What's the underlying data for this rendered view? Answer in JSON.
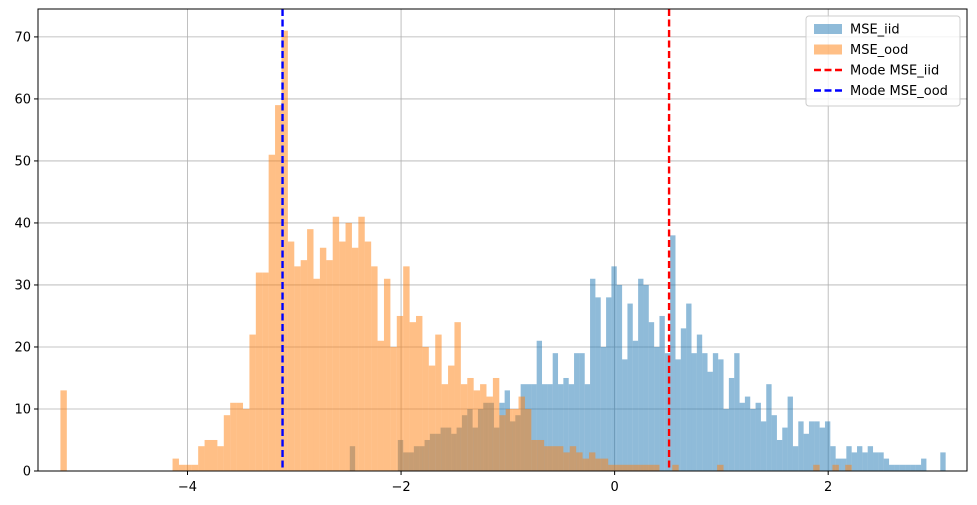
{
  "chart_data": {
    "type": "histogram",
    "title": "",
    "xlabel": "",
    "ylabel": "",
    "xlim": [
      -5.4,
      3.3
    ],
    "ylim": [
      0,
      74.5
    ],
    "xticks": [
      -4,
      -2,
      0,
      2
    ],
    "xtick_labels": [
      "−4",
      "−2",
      "0",
      "2"
    ],
    "yticks": [
      0,
      10,
      20,
      30,
      40,
      50,
      60,
      70
    ],
    "ytick_labels": [
      "0",
      "10",
      "20",
      "30",
      "40",
      "50",
      "60",
      "70"
    ],
    "grid": true,
    "legend_position": "top-right",
    "series": [
      {
        "name": "MSE_iid",
        "color": "#1f77b4",
        "alpha": 0.5,
        "bins": [
          [
            -2.48,
            -2.43,
            4
          ],
          [
            -2.03,
            -1.98,
            5
          ],
          [
            -1.98,
            -1.93,
            3
          ],
          [
            -1.93,
            -1.88,
            3
          ],
          [
            -1.88,
            -1.83,
            4
          ],
          [
            -1.83,
            -1.78,
            4
          ],
          [
            -1.78,
            -1.73,
            5
          ],
          [
            -1.73,
            -1.68,
            6
          ],
          [
            -1.68,
            -1.63,
            6
          ],
          [
            -1.63,
            -1.58,
            7
          ],
          [
            -1.58,
            -1.53,
            7
          ],
          [
            -1.53,
            -1.48,
            6
          ],
          [
            -1.48,
            -1.43,
            7
          ],
          [
            -1.43,
            -1.38,
            9
          ],
          [
            -1.38,
            -1.33,
            10
          ],
          [
            -1.33,
            -1.28,
            7
          ],
          [
            -1.28,
            -1.23,
            10
          ],
          [
            -1.23,
            -1.18,
            11
          ],
          [
            -1.18,
            -1.13,
            11
          ],
          [
            -1.13,
            -1.08,
            7
          ],
          [
            -1.08,
            -1.03,
            11
          ],
          [
            -1.03,
            -0.98,
            13
          ],
          [
            -0.98,
            -0.93,
            8
          ],
          [
            -0.93,
            -0.88,
            9
          ],
          [
            -0.88,
            -0.83,
            14
          ],
          [
            -0.83,
            -0.78,
            14
          ],
          [
            -0.78,
            -0.73,
            14
          ],
          [
            -0.73,
            -0.68,
            21
          ],
          [
            -0.68,
            -0.63,
            14
          ],
          [
            -0.63,
            -0.58,
            14
          ],
          [
            -0.58,
            -0.53,
            19
          ],
          [
            -0.53,
            -0.48,
            14
          ],
          [
            -0.48,
            -0.43,
            15
          ],
          [
            -0.43,
            -0.38,
            14
          ],
          [
            -0.38,
            -0.33,
            19
          ],
          [
            -0.33,
            -0.28,
            19
          ],
          [
            -0.28,
            -0.23,
            14
          ],
          [
            -0.23,
            -0.18,
            31
          ],
          [
            -0.18,
            -0.13,
            28
          ],
          [
            -0.13,
            -0.08,
            20
          ],
          [
            -0.08,
            -0.03,
            28
          ],
          [
            -0.03,
            0.02,
            33
          ],
          [
            0.02,
            0.07,
            30
          ],
          [
            0.07,
            0.12,
            18
          ],
          [
            0.12,
            0.17,
            27
          ],
          [
            0.17,
            0.22,
            21
          ],
          [
            0.22,
            0.27,
            31
          ],
          [
            0.27,
            0.32,
            30
          ],
          [
            0.32,
            0.37,
            24
          ],
          [
            0.37,
            0.42,
            20
          ],
          [
            0.42,
            0.47,
            25
          ],
          [
            0.47,
            0.52,
            19
          ],
          [
            0.52,
            0.57,
            38
          ],
          [
            0.57,
            0.62,
            18
          ],
          [
            0.62,
            0.67,
            23
          ],
          [
            0.67,
            0.72,
            27
          ],
          [
            0.72,
            0.77,
            19
          ],
          [
            0.77,
            0.82,
            22
          ],
          [
            0.82,
            0.87,
            19
          ],
          [
            0.87,
            0.92,
            16
          ],
          [
            0.92,
            0.97,
            19
          ],
          [
            0.97,
            1.02,
            18
          ],
          [
            1.02,
            1.07,
            10
          ],
          [
            1.07,
            1.12,
            15
          ],
          [
            1.12,
            1.17,
            19
          ],
          [
            1.17,
            1.22,
            11
          ],
          [
            1.22,
            1.27,
            12
          ],
          [
            1.27,
            1.32,
            10
          ],
          [
            1.32,
            1.37,
            11
          ],
          [
            1.37,
            1.42,
            8
          ],
          [
            1.42,
            1.47,
            14
          ],
          [
            1.47,
            1.52,
            9
          ],
          [
            1.52,
            1.57,
            5
          ],
          [
            1.57,
            1.62,
            7
          ],
          [
            1.62,
            1.67,
            12
          ],
          [
            1.67,
            1.72,
            4
          ],
          [
            1.72,
            1.77,
            8
          ],
          [
            1.77,
            1.82,
            6
          ],
          [
            1.82,
            1.87,
            8
          ],
          [
            1.87,
            1.92,
            8
          ],
          [
            1.92,
            1.97,
            7
          ],
          [
            1.97,
            2.02,
            8
          ],
          [
            2.02,
            2.07,
            4
          ],
          [
            2.07,
            2.12,
            2
          ],
          [
            2.12,
            2.17,
            2
          ],
          [
            2.17,
            2.22,
            4
          ],
          [
            2.22,
            2.27,
            3
          ],
          [
            2.27,
            2.32,
            4
          ],
          [
            2.32,
            2.37,
            3
          ],
          [
            2.37,
            2.42,
            4
          ],
          [
            2.42,
            2.47,
            3
          ],
          [
            2.47,
            2.52,
            3
          ],
          [
            2.52,
            2.57,
            2
          ],
          [
            2.57,
            2.62,
            1
          ],
          [
            2.62,
            2.67,
            1
          ],
          [
            2.67,
            2.72,
            1
          ],
          [
            2.72,
            2.77,
            1
          ],
          [
            2.77,
            2.82,
            1
          ],
          [
            2.82,
            2.87,
            1
          ],
          [
            2.87,
            2.92,
            2
          ],
          [
            3.05,
            3.1,
            3
          ]
        ]
      },
      {
        "name": "MSE_ood",
        "color": "#ff7f0e",
        "alpha": 0.5,
        "bins": [
          [
            -5.19,
            -5.13,
            13
          ],
          [
            -4.14,
            -4.08,
            2
          ],
          [
            -4.08,
            -4.02,
            1
          ],
          [
            -4.02,
            -3.96,
            1
          ],
          [
            -3.96,
            -3.9,
            1
          ],
          [
            -3.9,
            -3.84,
            4
          ],
          [
            -3.84,
            -3.78,
            5
          ],
          [
            -3.78,
            -3.72,
            5
          ],
          [
            -3.72,
            -3.66,
            4
          ],
          [
            -3.66,
            -3.6,
            9
          ],
          [
            -3.6,
            -3.54,
            11
          ],
          [
            -3.54,
            -3.48,
            11
          ],
          [
            -3.48,
            -3.42,
            10
          ],
          [
            -3.42,
            -3.36,
            22
          ],
          [
            -3.36,
            -3.3,
            32
          ],
          [
            -3.3,
            -3.24,
            32
          ],
          [
            -3.24,
            -3.18,
            51
          ],
          [
            -3.18,
            -3.12,
            59
          ],
          [
            -3.12,
            -3.06,
            71
          ],
          [
            -3.06,
            -3.0,
            37
          ],
          [
            -3.0,
            -2.94,
            33
          ],
          [
            -2.94,
            -2.88,
            34
          ],
          [
            -2.88,
            -2.82,
            39
          ],
          [
            -2.82,
            -2.76,
            31
          ],
          [
            -2.76,
            -2.7,
            36
          ],
          [
            -2.7,
            -2.64,
            34
          ],
          [
            -2.64,
            -2.58,
            41
          ],
          [
            -2.58,
            -2.52,
            37
          ],
          [
            -2.52,
            -2.46,
            40
          ],
          [
            -2.46,
            -2.4,
            36
          ],
          [
            -2.4,
            -2.34,
            41
          ],
          [
            -2.34,
            -2.28,
            37
          ],
          [
            -2.28,
            -2.22,
            33
          ],
          [
            -2.22,
            -2.16,
            21
          ],
          [
            -2.16,
            -2.1,
            31
          ],
          [
            -2.1,
            -2.04,
            20
          ],
          [
            -2.04,
            -1.98,
            25
          ],
          [
            -1.98,
            -1.92,
            33
          ],
          [
            -1.92,
            -1.86,
            24
          ],
          [
            -1.86,
            -1.8,
            25
          ],
          [
            -1.8,
            -1.74,
            20
          ],
          [
            -1.74,
            -1.68,
            17
          ],
          [
            -1.68,
            -1.62,
            22
          ],
          [
            -1.62,
            -1.56,
            14
          ],
          [
            -1.56,
            -1.5,
            17
          ],
          [
            -1.5,
            -1.44,
            24
          ],
          [
            -1.44,
            -1.38,
            14
          ],
          [
            -1.38,
            -1.32,
            15
          ],
          [
            -1.32,
            -1.26,
            13
          ],
          [
            -1.26,
            -1.2,
            14
          ],
          [
            -1.2,
            -1.14,
            12
          ],
          [
            -1.14,
            -1.08,
            15
          ],
          [
            -1.08,
            -1.02,
            9
          ],
          [
            -1.02,
            -0.96,
            10
          ],
          [
            -0.96,
            -0.9,
            10
          ],
          [
            -0.9,
            -0.84,
            12
          ],
          [
            -0.84,
            -0.78,
            10
          ],
          [
            -0.78,
            -0.72,
            5
          ],
          [
            -0.72,
            -0.66,
            5
          ],
          [
            -0.66,
            -0.6,
            4
          ],
          [
            -0.6,
            -0.54,
            4
          ],
          [
            -0.54,
            -0.48,
            4
          ],
          [
            -0.48,
            -0.42,
            3
          ],
          [
            -0.42,
            -0.36,
            4
          ],
          [
            -0.36,
            -0.3,
            3
          ],
          [
            -0.3,
            -0.24,
            2
          ],
          [
            -0.24,
            -0.18,
            3
          ],
          [
            -0.18,
            -0.12,
            2
          ],
          [
            -0.12,
            -0.06,
            2
          ],
          [
            -0.06,
            0.0,
            1
          ],
          [
            0.0,
            0.06,
            1
          ],
          [
            0.06,
            0.12,
            1
          ],
          [
            0.12,
            0.18,
            1
          ],
          [
            0.18,
            0.24,
            1
          ],
          [
            0.24,
            0.3,
            1
          ],
          [
            0.3,
            0.36,
            1
          ],
          [
            0.36,
            0.42,
            1
          ],
          [
            0.54,
            0.6,
            1
          ],
          [
            0.96,
            1.02,
            1
          ],
          [
            1.86,
            1.92,
            1
          ],
          [
            2.04,
            2.1,
            1
          ],
          [
            2.16,
            2.22,
            1
          ]
        ]
      }
    ],
    "vlines": [
      {
        "name": "Mode MSE_iid",
        "x": 0.51,
        "color": "#ff0000",
        "style": "dashed"
      },
      {
        "name": "Mode MSE_ood",
        "x": -3.11,
        "color": "#0000ff",
        "style": "dashed"
      }
    ],
    "legend": [
      {
        "label": "MSE_iid",
        "kind": "patch",
        "color": "#1f77b4",
        "alpha": 0.5
      },
      {
        "label": "MSE_ood",
        "kind": "patch",
        "color": "#ff7f0e",
        "alpha": 0.5
      },
      {
        "label": "Mode MSE_iid",
        "kind": "line",
        "color": "#ff0000"
      },
      {
        "label": "Mode MSE_ood",
        "kind": "line",
        "color": "#0000ff"
      }
    ]
  }
}
